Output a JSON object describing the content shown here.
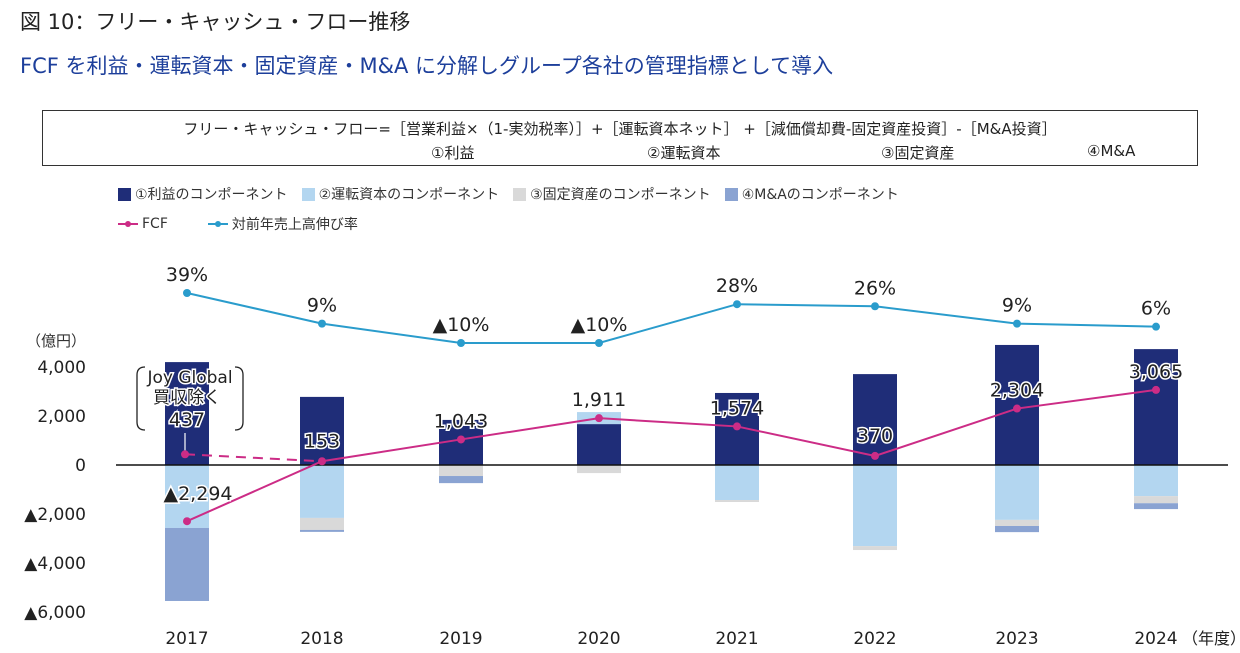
{
  "header": {
    "figure_title": "図 10：フリー・キャッシュ・フロー推移",
    "subtitle": "FCF を利益・運転資本・固定資産・M&A に分解しグループ各社の管理指標として導入"
  },
  "formula": {
    "text": "フリー・キャッシュ・フロー=［営業利益×（1-実効税率）］+［運転資本ネット］ +［減価償却費-固定資産投資］-［M&A投資］",
    "components": [
      "①利益",
      "②運転資本",
      "③固定資産",
      "④M&A"
    ]
  },
  "colors": {
    "profit": "#1f2d78",
    "working_capital": "#b3d6f0",
    "fixed_assets": "#d9d9d9",
    "ma": "#8aa3d2",
    "fcf": "#cc2c86",
    "sales_growth": "#2a9ccc",
    "title_blue": "#1d3f9b"
  },
  "chart_data": {
    "type": "bar",
    "stacked": true,
    "title": "フリー・キャッシュ・フロー推移",
    "ylabel": "(億円)",
    "xlabel": "(年度)",
    "ylim": [
      -6000,
      4000
    ],
    "yticks": [
      4000,
      2000,
      0,
      -2000,
      -4000,
      -6000
    ],
    "ytick_labels": [
      "4,000",
      "2,000",
      "0",
      "▲2,000",
      "▲4,000",
      "▲6,000"
    ],
    "categories": [
      "2017",
      "2018",
      "2019",
      "2020",
      "2021",
      "2022",
      "2023",
      "2024"
    ],
    "legend": [
      "①利益のコンポーネント",
      "②運転資本のコンポーネント",
      "③固定資産のコンポーネント",
      "④M&Aのコンポーネント",
      "FCF",
      "対前年売上高伸び率"
    ],
    "series": [
      {
        "name": "①利益のコンポーネント",
        "type": "bar",
        "values": [
          4200,
          2780,
          1840,
          1670,
          2940,
          3710,
          4900,
          4730
        ]
      },
      {
        "name": "②運転資本のコンポーネント",
        "type": "bar",
        "values": [
          -2570,
          -2160,
          0,
          490,
          -1430,
          -3310,
          -2240,
          -1270
        ]
      },
      {
        "name": "③固定資産のコンポーネント",
        "type": "bar",
        "values": [
          0,
          -490,
          -450,
          -330,
          -80,
          -160,
          -250,
          -290
        ]
      },
      {
        "name": "④M&Aのコンポーネント",
        "type": "bar",
        "values": [
          -2980,
          -80,
          -290,
          0,
          0,
          0,
          -250,
          -240
        ]
      },
      {
        "name": "FCF",
        "type": "line",
        "values": [
          -2294,
          153,
          1043,
          1911,
          1574,
          370,
          2304,
          3065
        ],
        "labels": [
          "▲2,294",
          "153",
          "1,043",
          "1,911",
          "1,574",
          "370",
          "2,304",
          "3,065"
        ]
      },
      {
        "name": "対前年売上高伸び率",
        "type": "line",
        "values_pct": [
          39,
          9,
          -10,
          -10,
          28,
          26,
          9,
          6
        ],
        "labels": [
          "39%",
          "9%",
          "▲10%",
          "▲10%",
          "28%",
          "26%",
          "9%",
          "6%"
        ]
      }
    ],
    "annotation": {
      "text_line1": "Joy Global",
      "text_line2": "買収除く",
      "value": 437,
      "value_label": "437",
      "category": "2017"
    }
  }
}
